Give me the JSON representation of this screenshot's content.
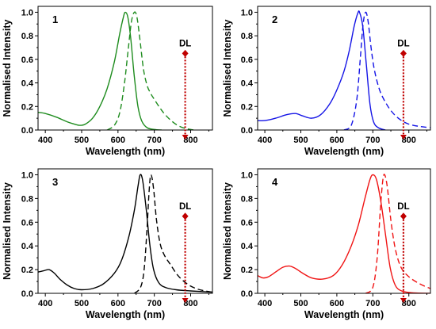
{
  "chart_data": [
    {
      "type": "line",
      "panel_label": "1",
      "xlabel": "Wavelength (nm)",
      "ylabel": "Normalised Intensity",
      "xlim": [
        380,
        860
      ],
      "ylim": [
        0,
        1.05
      ],
      "xticks": [
        400,
        500,
        600,
        700,
        800
      ],
      "xtick_labels": [
        "400",
        "500",
        "600",
        "700",
        "800"
      ],
      "yticks": [
        0,
        0.2,
        0.4,
        0.6,
        0.8,
        1.0
      ],
      "ytick_labels": [
        "0.0",
        "0.2",
        "0.4",
        "0.6",
        "0.8",
        "1.0"
      ],
      "grid": false,
      "color": "#1e8c1e",
      "series": [
        {
          "dashed": false,
          "x": [
            380,
            400,
            430,
            460,
            480,
            495,
            510,
            530,
            550,
            570,
            590,
            605,
            615,
            620,
            627,
            635,
            645,
            655,
            665,
            680,
            700,
            720
          ],
          "y": [
            0.15,
            0.14,
            0.11,
            0.07,
            0.05,
            0.04,
            0.05,
            0.1,
            0.2,
            0.35,
            0.58,
            0.82,
            0.96,
            1.0,
            0.96,
            0.78,
            0.45,
            0.2,
            0.08,
            0.02,
            0.005,
            0
          ]
        },
        {
          "dashed": true,
          "x": [
            570,
            590,
            605,
            618,
            628,
            637,
            645,
            652,
            660,
            670,
            680,
            690,
            700,
            715,
            730,
            750,
            770,
            790,
            810
          ],
          "y": [
            0,
            0.04,
            0.15,
            0.4,
            0.68,
            0.92,
            1.0,
            0.96,
            0.78,
            0.52,
            0.38,
            0.31,
            0.26,
            0.19,
            0.13,
            0.07,
            0.03,
            0.01,
            0
          ]
        }
      ],
      "annotations": [
        {
          "text": "DL",
          "x": 785,
          "y": 0.65,
          "color": "#c00000"
        }
      ]
    },
    {
      "type": "line",
      "panel_label": "2",
      "xlabel": "Wavelength (nm)",
      "ylabel": "Normalised Intensity",
      "xlim": [
        380,
        860
      ],
      "ylim": [
        0,
        1.05
      ],
      "xticks": [
        400,
        500,
        600,
        700,
        800
      ],
      "xtick_labels": [
        "400",
        "500",
        "600",
        "700",
        "800"
      ],
      "yticks": [
        0,
        0.2,
        0.4,
        0.6,
        0.8,
        1.0
      ],
      "ytick_labels": [
        "0.0",
        "0.2",
        "0.4",
        "0.6",
        "0.8",
        "1.0"
      ],
      "grid": false,
      "color": "#1414e6",
      "series": [
        {
          "dashed": false,
          "x": [
            380,
            400,
            430,
            460,
            485,
            505,
            530,
            555,
            580,
            600,
            620,
            635,
            648,
            658,
            663,
            672,
            682,
            692,
            702,
            715,
            735
          ],
          "y": [
            0.08,
            0.08,
            0.1,
            0.13,
            0.14,
            0.12,
            0.1,
            0.13,
            0.22,
            0.34,
            0.5,
            0.68,
            0.88,
            0.99,
            1.0,
            0.88,
            0.55,
            0.22,
            0.07,
            0.02,
            0
          ]
        },
        {
          "dashed": true,
          "x": [
            620,
            640,
            655,
            665,
            673,
            680,
            687,
            695,
            705,
            720,
            740,
            760,
            780,
            800,
            830,
            860
          ],
          "y": [
            0,
            0.04,
            0.25,
            0.6,
            0.9,
            1.0,
            0.92,
            0.7,
            0.5,
            0.33,
            0.21,
            0.13,
            0.08,
            0.05,
            0.03,
            0.02
          ]
        }
      ],
      "annotations": [
        {
          "text": "DL",
          "x": 785,
          "y": 0.65,
          "color": "#c00000"
        }
      ]
    },
    {
      "type": "line",
      "panel_label": "3",
      "xlabel": "Wavelength (nm)",
      "ylabel": "Normalised Intensity",
      "xlim": [
        380,
        860
      ],
      "ylim": [
        0,
        1.05
      ],
      "xticks": [
        400,
        500,
        600,
        700,
        800
      ],
      "xtick_labels": [
        "400",
        "500",
        "600",
        "700",
        "800"
      ],
      "yticks": [
        0,
        0.2,
        0.4,
        0.6,
        0.8,
        1.0
      ],
      "ytick_labels": [
        "0.0",
        "0.2",
        "0.4",
        "0.6",
        "0.8",
        "1.0"
      ],
      "grid": false,
      "color": "#000000",
      "series": [
        {
          "dashed": false,
          "x": [
            380,
            395,
            410,
            425,
            440,
            460,
            480,
            500,
            530,
            560,
            590,
            610,
            630,
            645,
            655,
            661,
            668,
            678,
            688,
            698,
            712,
            730,
            760,
            800,
            860
          ],
          "y": [
            0.18,
            0.19,
            0.2,
            0.17,
            0.12,
            0.07,
            0.04,
            0.03,
            0.04,
            0.08,
            0.17,
            0.28,
            0.48,
            0.7,
            0.9,
            1.0,
            0.95,
            0.7,
            0.4,
            0.2,
            0.09,
            0.05,
            0.03,
            0.02,
            0.01
          ]
        },
        {
          "dashed": true,
          "x": [
            645,
            662,
            672,
            680,
            686,
            691,
            698,
            706,
            716,
            728,
            745,
            765,
            790,
            815,
            840,
            860
          ],
          "y": [
            0,
            0.05,
            0.2,
            0.55,
            0.88,
            1.0,
            0.88,
            0.62,
            0.42,
            0.32,
            0.24,
            0.15,
            0.08,
            0.04,
            0.02,
            0.01
          ]
        }
      ],
      "annotations": [
        {
          "text": "DL",
          "x": 785,
          "y": 0.65,
          "color": "#c00000"
        }
      ]
    },
    {
      "type": "line",
      "panel_label": "4",
      "xlabel": "Wavelength (nm)",
      "ylabel": "Normalised Intensity",
      "xlim": [
        380,
        860
      ],
      "ylim": [
        0,
        1.05
      ],
      "xticks": [
        400,
        500,
        600,
        700,
        800
      ],
      "xtick_labels": [
        "400",
        "500",
        "600",
        "700",
        "800"
      ],
      "yticks": [
        0,
        0.2,
        0.4,
        0.6,
        0.8,
        1.0
      ],
      "ytick_labels": [
        "0.0",
        "0.2",
        "0.4",
        "0.6",
        "0.8",
        "1.0"
      ],
      "grid": false,
      "color": "#f01414",
      "series": [
        {
          "dashed": false,
          "x": [
            380,
            395,
            410,
            430,
            450,
            468,
            485,
            505,
            530,
            560,
            590,
            615,
            640,
            660,
            678,
            692,
            700,
            710,
            722,
            735,
            748,
            762,
            780,
            810,
            860
          ],
          "y": [
            0.15,
            0.13,
            0.14,
            0.18,
            0.22,
            0.23,
            0.21,
            0.17,
            0.13,
            0.12,
            0.15,
            0.24,
            0.4,
            0.58,
            0.8,
            0.96,
            1.0,
            0.96,
            0.78,
            0.5,
            0.22,
            0.07,
            0.02,
            0.005,
            0
          ]
        },
        {
          "dashed": true,
          "x": [
            680,
            700,
            712,
            721,
            728,
            733,
            740,
            750,
            762,
            778,
            800,
            830,
            860
          ],
          "y": [
            0,
            0.05,
            0.3,
            0.72,
            0.96,
            1.0,
            0.9,
            0.62,
            0.38,
            0.22,
            0.14,
            0.08,
            0.04
          ]
        }
      ],
      "annotations": [
        {
          "text": "DL",
          "x": 785,
          "y": 0.65,
          "color": "#c00000"
        }
      ]
    }
  ]
}
